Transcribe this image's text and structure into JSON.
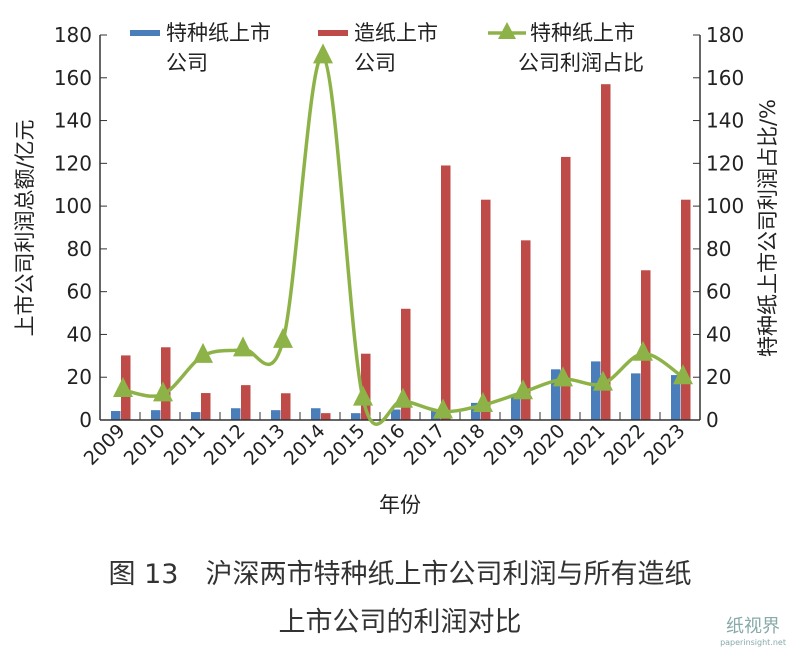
{
  "chart_data": {
    "type": "bar+line",
    "categories": [
      "2009",
      "2010",
      "2011",
      "2012",
      "2013",
      "2014",
      "2015",
      "2016",
      "2017",
      "2018",
      "2019",
      "2020",
      "2021",
      "2022",
      "2023"
    ],
    "xlabel": "年份",
    "ylabel": "上市公司利润总额/亿元",
    "y2label": "特种纸上市公司利润占比/%",
    "ylim": [
      0,
      180
    ],
    "y2lim": [
      0,
      180
    ],
    "yticks": [
      "0",
      "20",
      "40",
      "60",
      "80",
      "100",
      "120",
      "140",
      "160",
      "180"
    ],
    "legend": "top",
    "series": [
      {
        "name": "特种纸上市公司",
        "type": "bar",
        "color": "#4a7ebb",
        "values": [
          4.2,
          4.6,
          3.7,
          5.5,
          4.6,
          5.5,
          3.2,
          4.9,
          5,
          8,
          11,
          23.7,
          27.4,
          21.8,
          21
        ]
      },
      {
        "name": "造纸上市公司",
        "type": "bar",
        "color": "#be4b48",
        "values": [
          30.2,
          34,
          12.6,
          16.3,
          12.5,
          3.2,
          31,
          52,
          119,
          103,
          84,
          123,
          157,
          70,
          103
        ]
      },
      {
        "name": "特种纸上市公司利润占比",
        "type": "line",
        "axis": "right",
        "color": "#8db348",
        "values": [
          14,
          12,
          30,
          33,
          37,
          170,
          10,
          9,
          4,
          7,
          13,
          19,
          17,
          31,
          20
        ]
      }
    ]
  },
  "legend_labels": [
    [
      "特种纸上市",
      "公司"
    ],
    [
      "造纸上市",
      "公司"
    ],
    [
      "特种纸上市",
      "公司利润占比"
    ]
  ],
  "caption": {
    "line1": "图 13　沪深两市特种纸上市公司利润与所有造纸",
    "line2": "上市公司的利润对比"
  },
  "watermark": {
    "text": "纸视界",
    "url": "paperinsight.net"
  }
}
